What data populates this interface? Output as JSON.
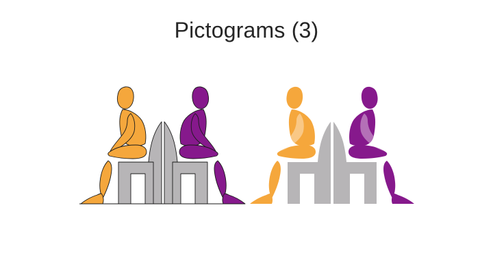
{
  "slide": {
    "title": "Pictograms (3)"
  },
  "colors": {
    "orange": "#F5A73C",
    "purple": "#86198C",
    "chair_gray": "#B7B5B7",
    "outline": "#1a1a1a",
    "highlight": "#ffffff"
  },
  "pictogram_groups": [
    {
      "name": "outlined-pair",
      "style": "outlined"
    },
    {
      "name": "filled-pair",
      "style": "filled"
    }
  ]
}
